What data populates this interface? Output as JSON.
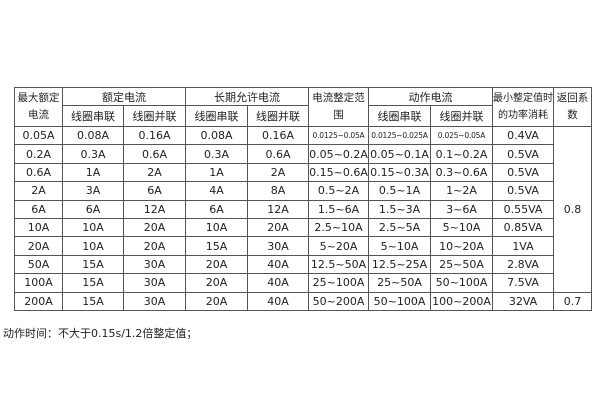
{
  "table": {
    "headers": {
      "max_rated": "最大额定电流",
      "rated_current": "额定电流",
      "long_term": "长期允许电流",
      "setting_range": "电流整定范围",
      "operate_current": "动作电流",
      "min_power": "最小整定值时的功率消耗",
      "return_coef": "返回系数",
      "series": "线圈串联",
      "parallel": "线圈并联"
    },
    "rows": [
      [
        "0.05A",
        "0.08A",
        "0.16A",
        "0.08A",
        "0.16A",
        "0.0125~0.05A",
        "0.0125~0.025A",
        "0.025~0.05A",
        "0.4VA"
      ],
      [
        "0.2A",
        "0.3A",
        "0.6A",
        "0.3A",
        "0.6A",
        "0.05~0.2A",
        "0.05~0.1A",
        "0.1~0.2A",
        "0.5VA"
      ],
      [
        "0.6A",
        "1A",
        "2A",
        "1A",
        "2A",
        "0.15~0.6A",
        "0.15~0.3A",
        "0.3~0.6A",
        "0.5VA"
      ],
      [
        "2A",
        "3A",
        "6A",
        "4A",
        "8A",
        "0.5~2A",
        "0.5~1A",
        "1~2A",
        "0.5VA"
      ],
      [
        "6A",
        "6A",
        "12A",
        "6A",
        "12A",
        "1.5~6A",
        "1.5~3A",
        "3~6A",
        "0.55VA"
      ],
      [
        "10A",
        "10A",
        "20A",
        "10A",
        "20A",
        "2.5~10A",
        "2.5~5A",
        "5~10A",
        "0.85VA"
      ],
      [
        "20A",
        "10A",
        "20A",
        "15A",
        "30A",
        "5~20A",
        "5~10A",
        "10~20A",
        "1VA"
      ],
      [
        "50A",
        "15A",
        "30A",
        "20A",
        "40A",
        "12.5~50A",
        "12.5~25A",
        "25~50A",
        "2.8VA"
      ],
      [
        "100A",
        "15A",
        "30A",
        "20A",
        "40A",
        "25~100A",
        "25~50A",
        "50~100A",
        "7.5VA"
      ],
      [
        "200A",
        "15A",
        "30A",
        "20A",
        "40A",
        "50~200A",
        "50~100A",
        "100~200A",
        "32VA"
      ]
    ],
    "return_values": [
      "0.8",
      "0.7"
    ]
  },
  "note": "动作时间：不大于0.15s/1.2倍整定值；"
}
